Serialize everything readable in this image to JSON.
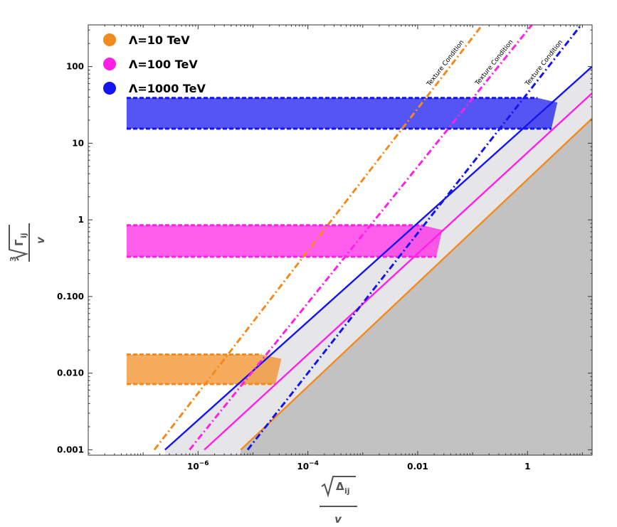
{
  "chart_data": {
    "type": "line",
    "xscale": "log",
    "yscale": "log",
    "xlim": [
      1e-08,
      15
    ],
    "ylim": [
      0.00085,
      350
    ],
    "x_ticks": [
      {
        "value": 1e-06,
        "base": "10",
        "exp": "−6"
      },
      {
        "value": 0.0001,
        "base": "10",
        "exp": "−4"
      },
      {
        "value": 0.01,
        "label": "0.01"
      },
      {
        "value": 1,
        "label": "1"
      }
    ],
    "y_ticks": [
      {
        "value": 0.001,
        "label": "0.001"
      },
      {
        "value": 0.01,
        "label": "0.010"
      },
      {
        "value": 0.1,
        "label": "0.100"
      },
      {
        "value": 1,
        "label": "1"
      },
      {
        "value": 10,
        "label": "10"
      },
      {
        "value": 100,
        "label": "100"
      }
    ],
    "xlabel": {
      "radicand": "Δ",
      "sub": "ij",
      "denominator": "v"
    },
    "ylabel": {
      "index": "3",
      "radicand": "Γ",
      "sub": "ij",
      "denominator": "v"
    },
    "legend_position": "top-left",
    "series": [
      {
        "name": "Λ=10 TeV",
        "color": "#f28a1e",
        "band": {
          "y_low": 0.0072,
          "y_high": 0.0175,
          "x_start": 5e-08,
          "x_end": 3.3e-05
        },
        "solid_line": {
          "x": [
            6e-06,
            15
          ],
          "y": [
            0.001,
            21
          ]
        },
        "texture_line": {
          "x": [
            1.6e-07,
            0.15
          ],
          "y": [
            0.001,
            350
          ]
        }
      },
      {
        "name": "Λ=100 TeV",
        "color": "#ff1fe5",
        "band": {
          "y_low": 0.33,
          "y_high": 0.85,
          "x_start": 5e-08,
          "x_end": 0.028
        },
        "solid_line": {
          "x": [
            1.3e-06,
            15
          ],
          "y": [
            0.001,
            45
          ]
        },
        "texture_line": {
          "x": [
            7e-07,
            1.2
          ],
          "y": [
            0.001,
            350
          ]
        }
      },
      {
        "name": "Λ=1000 TeV",
        "color": "#1414ee",
        "band": {
          "y_low": 15.5,
          "y_high": 39,
          "x_start": 5e-08,
          "x_end": 3.5
        },
        "solid_line": {
          "x": [
            2.5e-07,
            15
          ],
          "y": [
            0.001,
            100
          ]
        },
        "texture_line": {
          "x": [
            8e-06,
            9.5
          ],
          "y": [
            0.001,
            350
          ]
        }
      }
    ],
    "annotations": [
      "Texture Condition",
      "Texture Condition",
      "Texture Condition"
    ]
  }
}
